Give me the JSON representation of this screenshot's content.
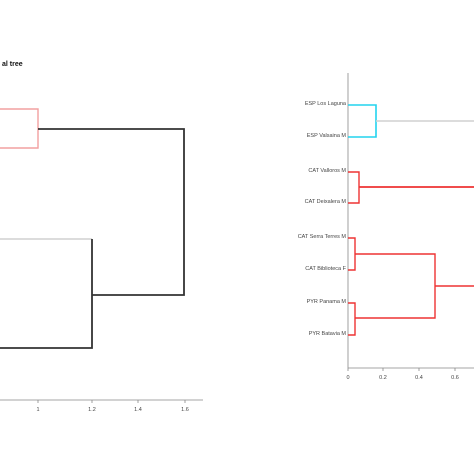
{
  "left_panel": {
    "title": "al tree",
    "x_ticks": [
      "1",
      "1.2",
      "1.4",
      "1.6"
    ]
  },
  "right_panel": {
    "leaf_labels": [
      "ESP Los Laguna",
      "ESP Valsaina M",
      "CAT Valloros M",
      "CAT Deixalera M",
      "CAT Serra Terres M",
      "CAT Biblioteca F",
      "PYR Panama M",
      "PYR Batavia M"
    ],
    "x_ticks": [
      "0",
      "0.2",
      "0.4",
      "0.6"
    ]
  },
  "colors": {
    "black": "#333333",
    "gray": "#d0d0d0",
    "red": "#ee3333",
    "pink": "#f2a0a0",
    "cyan": "#22d3ee",
    "axis": "#888888"
  }
}
